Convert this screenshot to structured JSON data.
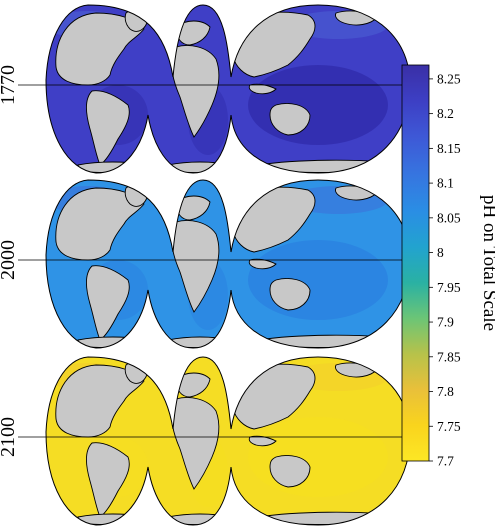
{
  "panels": [
    {
      "year": "1770",
      "ocean_color": "#3f3fc6",
      "deep_color": "#2f2aa8",
      "coastal_color": "#4d63d6"
    },
    {
      "year": "2000",
      "ocean_color": "#2f93e6",
      "deep_color": "#2a7fe0",
      "coastal_color": "#3d6fd9"
    },
    {
      "year": "2100",
      "ocean_color": "#f5dd24",
      "deep_color": "#f7e020",
      "coastal_color": "#f2cd2c"
    }
  ],
  "land_color": "#c8c8c8",
  "coastline_color": "#000000",
  "colorbar": {
    "title": "pH on Total Scale",
    "ticks": [
      "8.25",
      "8.2",
      "8.15",
      "8.1",
      "8.05",
      "8",
      "7.95",
      "7.9",
      "7.85",
      "7.8",
      "7.75",
      "7.7"
    ],
    "min": 7.7,
    "max": 8.27,
    "colormap": [
      "#fde725",
      "#f9d41d",
      "#e9c03a",
      "#b7c24a",
      "#6cc576",
      "#2ab1a3",
      "#22a3cf",
      "#2a8ee4",
      "#3676e0",
      "#3e58d6",
      "#3d3fc4",
      "#3a2fa6"
    ]
  }
}
